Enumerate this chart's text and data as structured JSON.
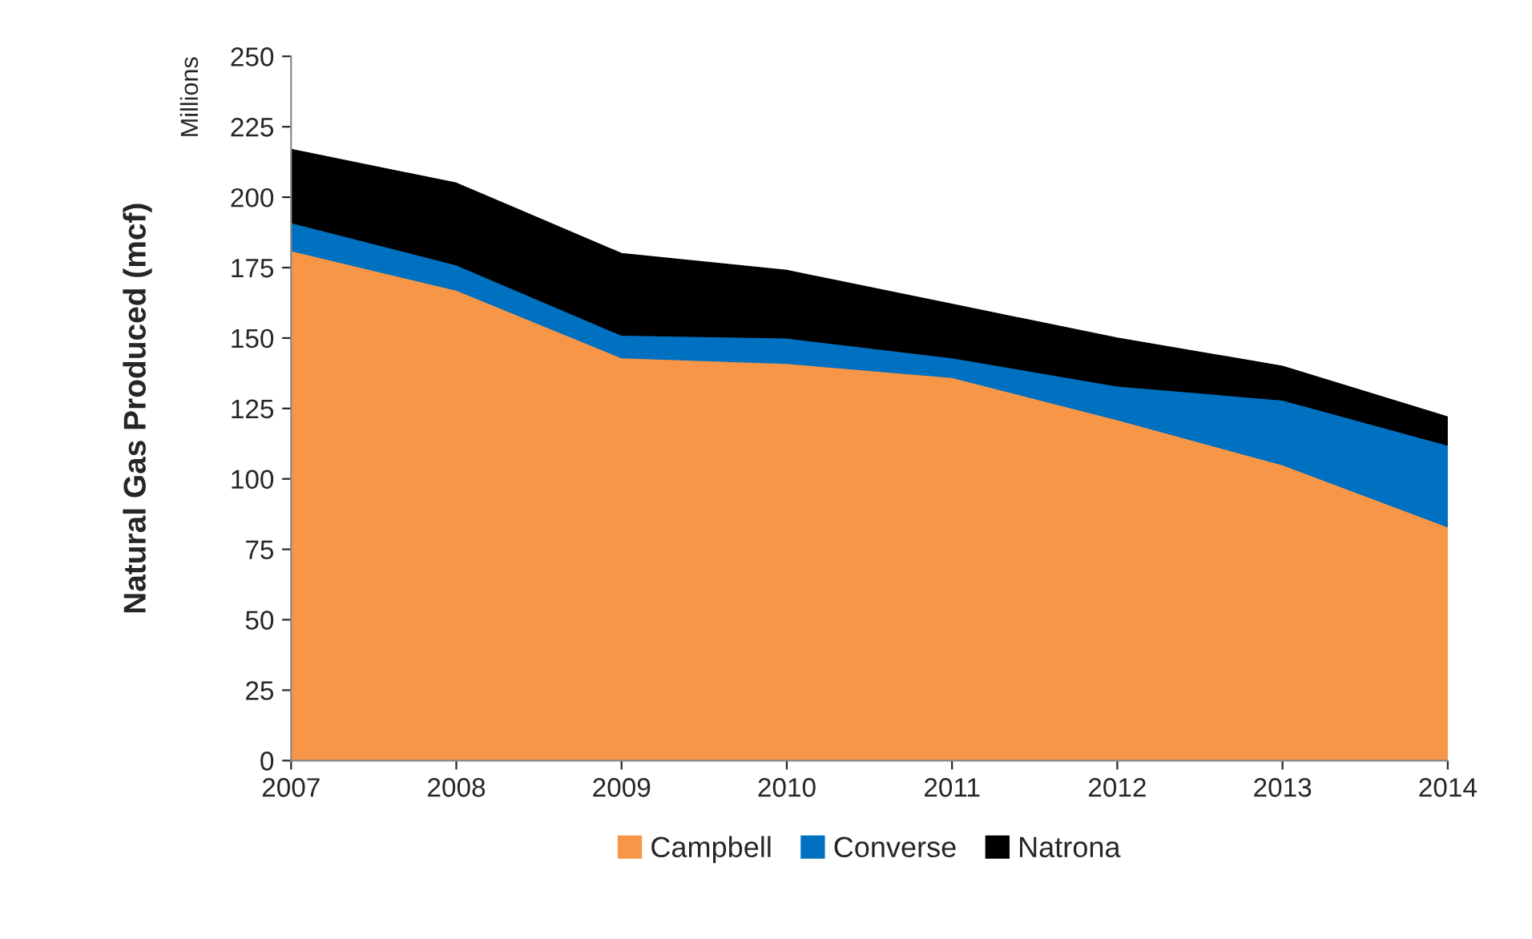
{
  "chart_data": {
    "type": "area",
    "stacked": true,
    "ylabel": "Natural Gas Produced (mcf)",
    "annotations": [
      "Millions"
    ],
    "x": [
      2007,
      2008,
      2009,
      2010,
      2011,
      2012,
      2013,
      2014
    ],
    "xlim": [
      2007,
      2014
    ],
    "xticks": [
      2007,
      2008,
      2009,
      2010,
      2011,
      2012,
      2013,
      2014
    ],
    "ylim": [
      0,
      250
    ],
    "yticks": [
      0,
      25,
      50,
      75,
      100,
      125,
      150,
      175,
      200,
      225,
      250
    ],
    "series": [
      {
        "name": "Campbell",
        "color": "#f79646",
        "values": [
          181,
          167,
          143,
          141,
          136,
          121,
          105,
          83
        ]
      },
      {
        "name": "Converse",
        "color": "#0070c0",
        "values": [
          10,
          9,
          8,
          9,
          7,
          12,
          23,
          29
        ]
      },
      {
        "name": "Natrona",
        "color": "#000000",
        "values": [
          26,
          29,
          29,
          24,
          19,
          17,
          12,
          10
        ]
      }
    ],
    "grid": false,
    "legend": "bottom"
  }
}
